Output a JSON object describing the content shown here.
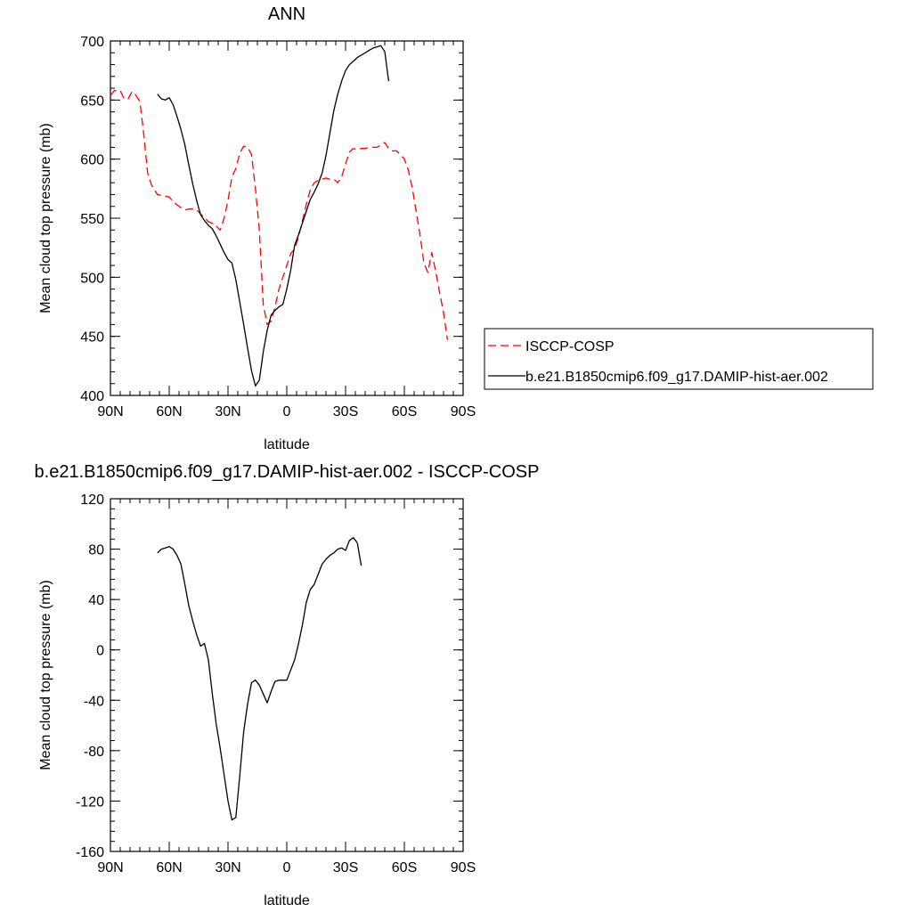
{
  "chart_data": [
    {
      "type": "line",
      "title": "ANN",
      "xlabel": "latitude",
      "ylabel": "Mean cloud top pressure (mb)",
      "xlim": [
        90,
        -90
      ],
      "ylim": [
        400,
        700
      ],
      "xticks": [
        90,
        60,
        30,
        0,
        -30,
        -60,
        -90
      ],
      "xtick_labels": [
        "90N",
        "60N",
        "30N",
        "0",
        "30S",
        "60S",
        "90S"
      ],
      "yticks": [
        400,
        450,
        500,
        550,
        600,
        650,
        700
      ],
      "ytick_labels": [
        "400",
        "450",
        "500",
        "550",
        "600",
        "650",
        "700"
      ],
      "grid": false,
      "legend_position": "outside-right",
      "series": [
        {
          "name": "ISCCP-COSP",
          "color": "#ff0000",
          "dash": "dashed",
          "points": [
            [
              90,
              654
            ],
            [
              88,
              658
            ],
            [
              85,
              658
            ],
            [
              83,
              651
            ],
            [
              81,
              651
            ],
            [
              79,
              657
            ],
            [
              77,
              654
            ],
            [
              75,
              649
            ],
            [
              73,
              621
            ],
            [
              71,
              588
            ],
            [
              69,
              578
            ],
            [
              66,
              570
            ],
            [
              63,
              569
            ],
            [
              60,
              568
            ],
            [
              58,
              564
            ],
            [
              55,
              560
            ],
            [
              52,
              557
            ],
            [
              49,
              558
            ],
            [
              46,
              557
            ],
            [
              43,
              552
            ],
            [
              40,
              547
            ],
            [
              37,
              545
            ],
            [
              34,
              540
            ],
            [
              32,
              550
            ],
            [
              30,
              565
            ],
            [
              28,
              585
            ],
            [
              26,
              592
            ],
            [
              24,
              605
            ],
            [
              22,
              611
            ],
            [
              20,
              610
            ],
            [
              18,
              604
            ],
            [
              16,
              575
            ],
            [
              14,
              540
            ],
            [
              12,
              477
            ],
            [
              10,
              460
            ],
            [
              8,
              463
            ],
            [
              6,
              475
            ],
            [
              4,
              490
            ],
            [
              2,
              500
            ],
            [
              0,
              510
            ],
            [
              -2,
              520
            ],
            [
              -4,
              524
            ],
            [
              -6,
              534
            ],
            [
              -8,
              548
            ],
            [
              -10,
              562
            ],
            [
              -12,
              574
            ],
            [
              -14,
              580
            ],
            [
              -16,
              582
            ],
            [
              -18,
              583
            ],
            [
              -20,
              584
            ],
            [
              -22,
              583
            ],
            [
              -24,
              583
            ],
            [
              -26,
              580
            ],
            [
              -28,
              585
            ],
            [
              -30,
              596
            ],
            [
              -32,
              606
            ],
            [
              -34,
              609
            ],
            [
              -36,
              608
            ],
            [
              -38,
              609
            ],
            [
              -40,
              609
            ],
            [
              -42,
              610
            ],
            [
              -44,
              610
            ],
            [
              -46,
              610
            ],
            [
              -48,
              612
            ],
            [
              -50,
              614
            ],
            [
              -52,
              609
            ],
            [
              -54,
              607
            ],
            [
              -56,
              607
            ],
            [
              -58,
              604
            ],
            [
              -60,
              600
            ],
            [
              -62,
              591
            ],
            [
              -64,
              576
            ],
            [
              -66,
              556
            ],
            [
              -68,
              536
            ],
            [
              -70,
              512
            ],
            [
              -72,
              504
            ],
            [
              -74,
              521
            ],
            [
              -76,
              505
            ],
            [
              -78,
              487
            ],
            [
              -80,
              470
            ],
            [
              -82,
              447
            ]
          ]
        },
        {
          "name": "b.e21.B1850cmip6.f09_g17.DAMIP-hist-aer.002",
          "color": "#000000",
          "dash": "solid",
          "points": [
            [
              66,
              655
            ],
            [
              64,
              651
            ],
            [
              62,
              650
            ],
            [
              60,
              652
            ],
            [
              58,
              646
            ],
            [
              56,
              636
            ],
            [
              54,
              625
            ],
            [
              52,
              612
            ],
            [
              50,
              595
            ],
            [
              48,
              579
            ],
            [
              46,
              565
            ],
            [
              44,
              553
            ],
            [
              42,
              548
            ],
            [
              40,
              544
            ],
            [
              38,
              541
            ],
            [
              36,
              535
            ],
            [
              34,
              528
            ],
            [
              32,
              521
            ],
            [
              30,
              515
            ],
            [
              28,
              512
            ],
            [
              26,
              498
            ],
            [
              24,
              479
            ],
            [
              22,
              460
            ],
            [
              20,
              440
            ],
            [
              18,
              421
            ],
            [
              16,
              408
            ],
            [
              14,
              413
            ],
            [
              12,
              437
            ],
            [
              10,
              455
            ],
            [
              8,
              468
            ],
            [
              6,
              472
            ],
            [
              4,
              475
            ],
            [
              2,
              477
            ],
            [
              0,
              490
            ],
            [
              -2,
              506
            ],
            [
              -4,
              527
            ],
            [
              -6,
              536
            ],
            [
              -8,
              546
            ],
            [
              -10,
              556
            ],
            [
              -12,
              566
            ],
            [
              -14,
              572
            ],
            [
              -16,
              579
            ],
            [
              -18,
              588
            ],
            [
              -20,
              603
            ],
            [
              -22,
              622
            ],
            [
              -24,
              641
            ],
            [
              -26,
              655
            ],
            [
              -28,
              666
            ],
            [
              -30,
              675
            ],
            [
              -32,
              680
            ],
            [
              -34,
              683
            ],
            [
              -36,
              686
            ],
            [
              -38,
              688
            ],
            [
              -40,
              690
            ],
            [
              -42,
              692
            ],
            [
              -44,
              694
            ],
            [
              -46,
              695
            ],
            [
              -48,
              696
            ],
            [
              -50,
              691
            ],
            [
              -52,
              666
            ]
          ]
        }
      ]
    },
    {
      "type": "line",
      "title": "b.e21.B1850cmip6.f09_g17.DAMIP-hist-aer.002 - ISCCP-COSP",
      "xlabel": "latitude",
      "ylabel": "Mean cloud top pressure (mb)",
      "xlim": [
        90,
        -90
      ],
      "ylim": [
        -160,
        120
      ],
      "xticks": [
        90,
        60,
        30,
        0,
        -30,
        -60,
        -90
      ],
      "xtick_labels": [
        "90N",
        "60N",
        "30N",
        "0",
        "30S",
        "60S",
        "90S"
      ],
      "yticks": [
        -160,
        -120,
        -80,
        -40,
        0,
        40,
        80,
        120
      ],
      "ytick_labels": [
        "-160",
        "-120",
        "-80",
        "-40",
        "0",
        "40",
        "80",
        "120"
      ],
      "grid": false,
      "series": [
        {
          "color": "#000000",
          "dash": "solid",
          "points": [
            [
              66,
              77
            ],
            [
              64,
              80
            ],
            [
              62,
              81
            ],
            [
              60,
              82
            ],
            [
              58,
              80
            ],
            [
              56,
              75
            ],
            [
              54,
              68
            ],
            [
              52,
              52
            ],
            [
              50,
              35
            ],
            [
              48,
              23
            ],
            [
              46,
              12
            ],
            [
              44,
              3
            ],
            [
              42,
              5
            ],
            [
              40,
              -8
            ],
            [
              38,
              -35
            ],
            [
              36,
              -59
            ],
            [
              34,
              -78
            ],
            [
              32,
              -99
            ],
            [
              30,
              -120
            ],
            [
              28,
              -135
            ],
            [
              26,
              -133
            ],
            [
              24,
              -100
            ],
            [
              22,
              -65
            ],
            [
              20,
              -43
            ],
            [
              18,
              -26
            ],
            [
              16,
              -24
            ],
            [
              14,
              -28
            ],
            [
              12,
              -35
            ],
            [
              10,
              -42
            ],
            [
              8,
              -33
            ],
            [
              6,
              -25
            ],
            [
              4,
              -24
            ],
            [
              2,
              -24
            ],
            [
              0,
              -24
            ],
            [
              -2,
              -16
            ],
            [
              -4,
              -8
            ],
            [
              -6,
              5
            ],
            [
              -8,
              20
            ],
            [
              -10,
              38
            ],
            [
              -12,
              48
            ],
            [
              -14,
              52
            ],
            [
              -16,
              60
            ],
            [
              -18,
              68
            ],
            [
              -20,
              72
            ],
            [
              -22,
              75
            ],
            [
              -24,
              77
            ],
            [
              -26,
              80
            ],
            [
              -28,
              81
            ],
            [
              -30,
              79
            ],
            [
              -32,
              87
            ],
            [
              -34,
              89
            ],
            [
              -36,
              85
            ],
            [
              -38,
              67
            ]
          ]
        }
      ]
    }
  ]
}
